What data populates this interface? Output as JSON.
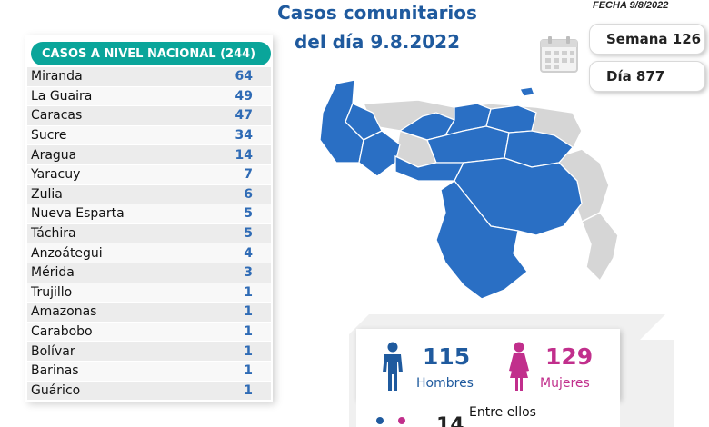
{
  "header": {
    "title_line1": "Casos comunitarios",
    "title_line2": "del día 9.8.2022",
    "fecha": "FECHA 9/8/2022",
    "semana": "Semana 126",
    "dia": "Día 877"
  },
  "table": {
    "header": "CASOS A NIVEL NACIONAL  (244)",
    "rows": [
      {
        "state": "Miranda",
        "value": "64"
      },
      {
        "state": "La Guaira",
        "value": "49"
      },
      {
        "state": "Caracas",
        "value": "47"
      },
      {
        "state": "Sucre",
        "value": "34"
      },
      {
        "state": "Aragua",
        "value": "14"
      },
      {
        "state": "Yaracuy",
        "value": "7"
      },
      {
        "state": "Zulia",
        "value": "6"
      },
      {
        "state": "Nueva Esparta",
        "value": "5"
      },
      {
        "state": "Táchira",
        "value": "5"
      },
      {
        "state": "Anzoátegui",
        "value": "4"
      },
      {
        "state": "Mérida",
        "value": "3"
      },
      {
        "state": "Trujillo",
        "value": "1"
      },
      {
        "state": "Amazonas",
        "value": "1"
      },
      {
        "state": "Carabobo",
        "value": "1"
      },
      {
        "state": "Bolívar",
        "value": "1"
      },
      {
        "state": "Barinas",
        "value": "1"
      },
      {
        "state": "Guárico",
        "value": "1"
      }
    ]
  },
  "gender": {
    "men_count": "115",
    "men_label": "Hombres",
    "women_count": "129",
    "women_label": "Mujeres",
    "entre_label": "Entre ellos",
    "sub_count": "14"
  },
  "colors": {
    "accent_blue": "#1f5a9e",
    "teal": "#0aa59a",
    "map_active": "#2a6fc4",
    "map_inactive": "#d6d6d6",
    "women_pink": "#c12f8c"
  },
  "icons": {
    "calendar": "calendar-icon",
    "man": "man-icon",
    "woman": "woman-icon"
  }
}
